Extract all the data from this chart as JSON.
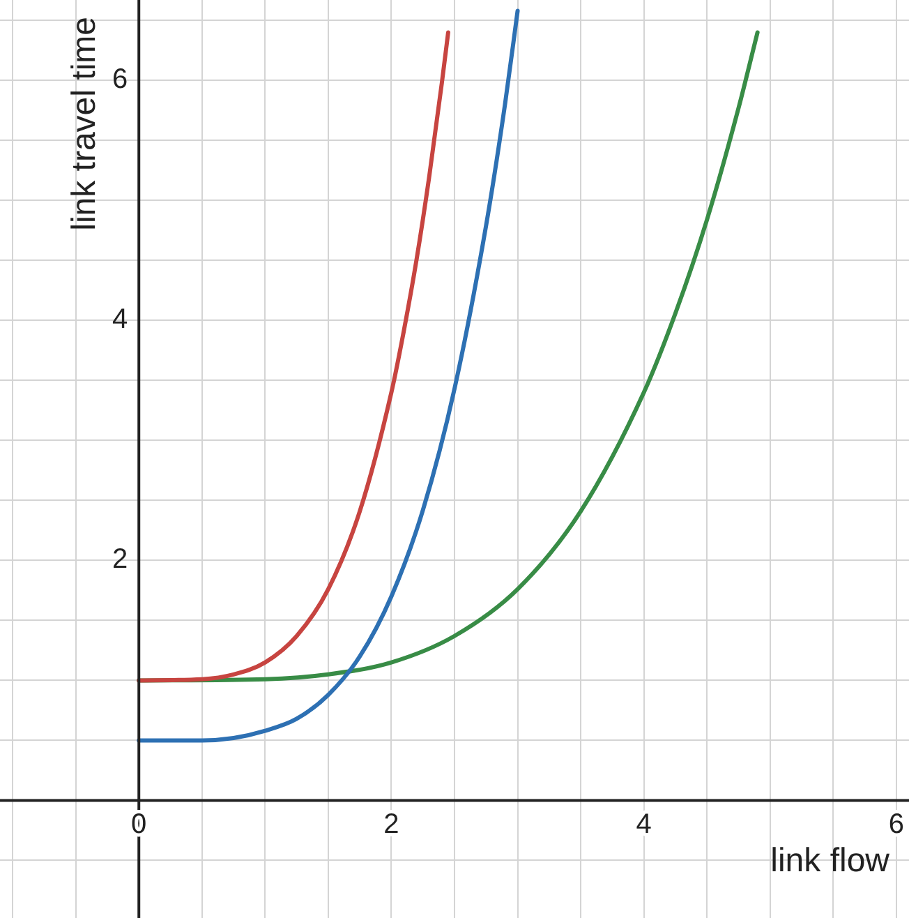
{
  "chart_data": {
    "type": "line",
    "xlabel": "link flow",
    "ylabel": "link travel time",
    "xlim": [
      -1.1,
      6.1
    ],
    "ylim": [
      -0.98,
      6.67
    ],
    "xticks": [
      {
        "value": -1,
        "label": null
      },
      {
        "value": -0.5,
        "label": null
      },
      0,
      {
        "value": 0.5,
        "label": null
      },
      {
        "value": 1,
        "label": null
      },
      {
        "value": 1.5,
        "label": null
      },
      2,
      {
        "value": 2.5,
        "label": null
      },
      {
        "value": 3,
        "label": null
      },
      {
        "value": 3.5,
        "label": null
      },
      4,
      {
        "value": 4.5,
        "label": null
      },
      {
        "value": 5,
        "label": null
      },
      {
        "value": 5.5,
        "label": null
      },
      6
    ],
    "yticks": [
      {
        "value": -0.5,
        "label": null
      },
      {
        "value": 0,
        "label": null
      },
      {
        "value": 0.5,
        "label": null
      },
      {
        "value": 1,
        "label": null
      },
      {
        "value": 1.5,
        "label": null
      },
      2,
      {
        "value": 2.5,
        "label": null
      },
      {
        "value": 3,
        "label": null
      },
      {
        "value": 3.5,
        "label": null
      },
      4,
      {
        "value": 4.5,
        "label": null
      },
      {
        "value": 5,
        "label": null
      },
      {
        "value": 5.5,
        "label": null
      },
      6,
      {
        "value": 6.5,
        "label": null
      }
    ],
    "grid": true,
    "legend": false,
    "marker": "none",
    "line_style": "solid",
    "series": [
      {
        "color": "#c74440",
        "x": [
          0,
          0.5,
          0.75,
          1,
          1.25,
          1.5,
          1.75,
          2,
          2.1,
          2.2,
          2.3,
          2.4,
          2.45
        ],
        "values": [
          1,
          1.01,
          1.05,
          1.15,
          1.37,
          1.76,
          2.41,
          3.4,
          3.92,
          4.51,
          5.2,
          5.98,
          6.4
        ]
      },
      {
        "color": "#2d70b3",
        "x": [
          0,
          0.5,
          0.75,
          1,
          1.25,
          1.5,
          1.75,
          2,
          2.25,
          2.5,
          2.75,
          2.9,
          3
        ],
        "values": [
          0.5,
          0.5,
          0.52,
          0.58,
          0.68,
          0.88,
          1.2,
          1.7,
          2.42,
          3.43,
          4.79,
          5.8,
          6.58
        ]
      },
      {
        "color": "#388c46",
        "x": [
          0,
          1,
          1.5,
          2,
          2.5,
          3,
          3.5,
          4,
          4.25,
          4.5,
          4.75,
          4.9
        ],
        "values": [
          1,
          1.01,
          1.05,
          1.15,
          1.37,
          1.76,
          2.41,
          3.4,
          4.06,
          4.84,
          5.77,
          6.4
        ]
      }
    ]
  }
}
